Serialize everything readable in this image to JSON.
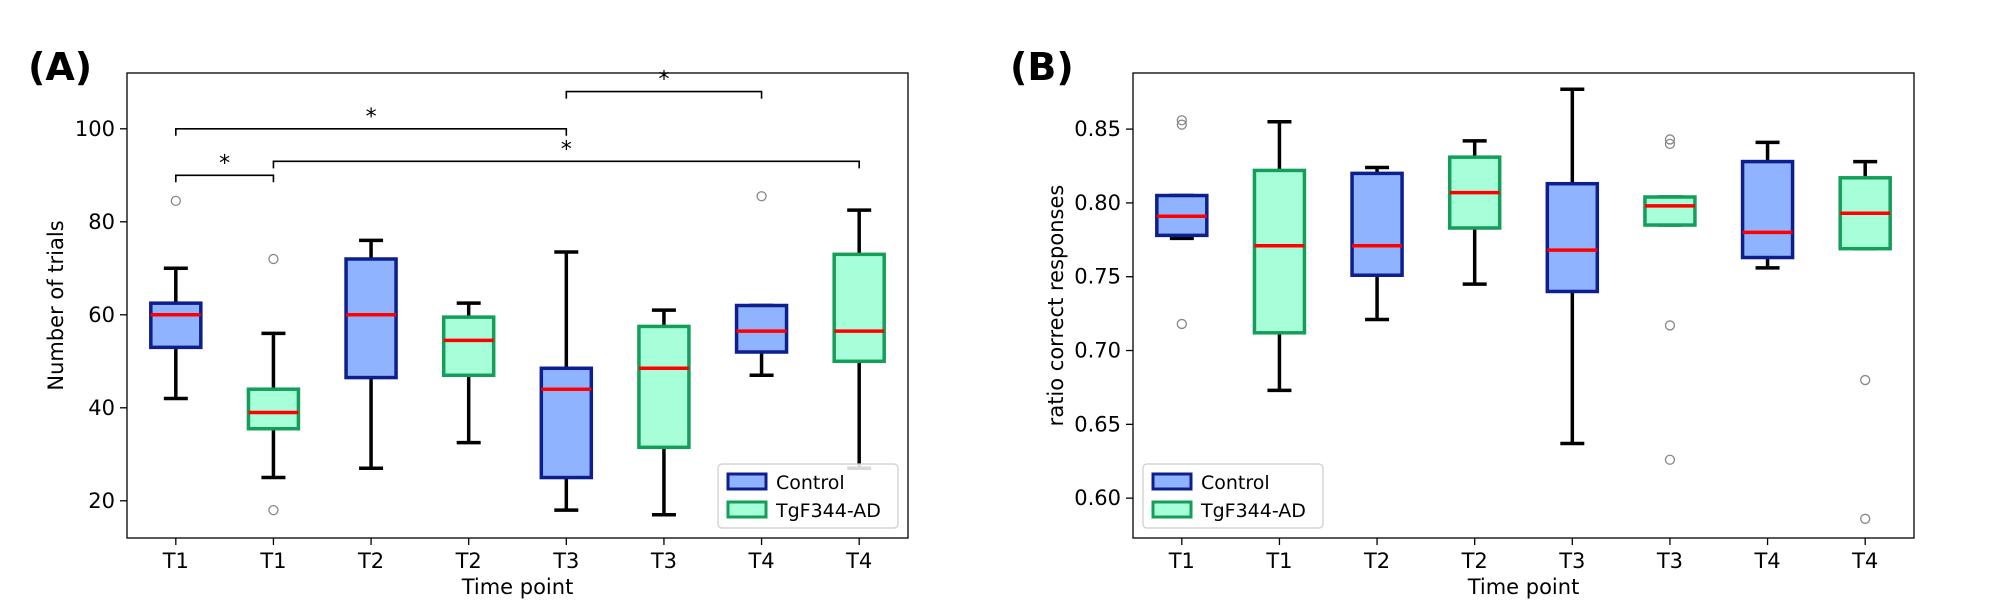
{
  "chart_data": [
    {
      "type": "boxplot",
      "panel_label": "(A)",
      "xlabel": "Time point",
      "ylabel": "Number of trials",
      "ylim": [
        12,
        112
      ],
      "yticks": [
        20,
        40,
        60,
        80,
        100
      ],
      "categories": [
        "T1",
        "T1",
        "T2",
        "T2",
        "T3",
        "T3",
        "T4",
        "T4"
      ],
      "boxes": [
        {
          "group": "Control",
          "whislo": 42,
          "q1": 53,
          "med": 60,
          "q3": 62.5,
          "whishi": 70,
          "fliers": [
            84.5
          ]
        },
        {
          "group": "TgF344-AD",
          "whislo": 25,
          "q1": 35.5,
          "med": 39,
          "q3": 44,
          "whishi": 56,
          "fliers": [
            72,
            18
          ]
        },
        {
          "group": "Control",
          "whislo": 27,
          "q1": 46.5,
          "med": 60,
          "q3": 72,
          "whishi": 76,
          "fliers": []
        },
        {
          "group": "TgF344-AD",
          "whislo": 32.5,
          "q1": 47,
          "med": 54.5,
          "q3": 59.5,
          "whishi": 62.5,
          "fliers": []
        },
        {
          "group": "Control",
          "whislo": 18,
          "q1": 25,
          "med": 44,
          "q3": 48.5,
          "whishi": 73.5,
          "fliers": []
        },
        {
          "group": "TgF344-AD",
          "whislo": 17,
          "q1": 31.5,
          "med": 48.5,
          "q3": 57.5,
          "whishi": 61,
          "fliers": []
        },
        {
          "group": "Control",
          "whislo": 47,
          "q1": 52,
          "med": 56.5,
          "q3": 62,
          "whishi": 62,
          "fliers": [
            85.5
          ]
        },
        {
          "group": "TgF344-AD",
          "whislo": 27,
          "q1": 50,
          "med": 56.5,
          "q3": 73,
          "whishi": 82.5,
          "fliers": []
        }
      ],
      "significance": [
        {
          "from": 0,
          "to": 1,
          "y": 90,
          "label": "*"
        },
        {
          "from": 0,
          "to": 4,
          "y": 100,
          "label": "*"
        },
        {
          "from": 4,
          "to": 6,
          "y": 108,
          "label": "*"
        },
        {
          "from": 1,
          "to": 7,
          "y": 93,
          "label": "*"
        }
      ],
      "legend": {
        "position": "lower right",
        "entries": [
          "Control",
          "TgF344-AD"
        ]
      }
    },
    {
      "type": "boxplot",
      "panel_label": "(B)",
      "xlabel": "Time point",
      "ylabel": "ratio correct responses",
      "ylim": [
        0.573,
        0.888
      ],
      "yticks": [
        0.6,
        0.65,
        0.7,
        0.75,
        0.8,
        0.85
      ],
      "ytick_labels": [
        "0.60",
        "0.65",
        "0.70",
        "0.75",
        "0.80",
        "0.85"
      ],
      "categories": [
        "T1",
        "T1",
        "T2",
        "T2",
        "T3",
        "T3",
        "T4",
        "T4"
      ],
      "boxes": [
        {
          "group": "Control",
          "whislo": 0.776,
          "q1": 0.778,
          "med": 0.791,
          "q3": 0.805,
          "whishi": 0.805,
          "fliers": [
            0.856,
            0.853,
            0.718
          ]
        },
        {
          "group": "TgF344-AD",
          "whislo": 0.673,
          "q1": 0.712,
          "med": 0.771,
          "q3": 0.822,
          "whishi": 0.855,
          "fliers": []
        },
        {
          "group": "Control",
          "whislo": 0.721,
          "q1": 0.751,
          "med": 0.771,
          "q3": 0.82,
          "whishi": 0.824,
          "fliers": []
        },
        {
          "group": "TgF344-AD",
          "whislo": 0.745,
          "q1": 0.783,
          "med": 0.807,
          "q3": 0.831,
          "whishi": 0.842,
          "fliers": []
        },
        {
          "group": "Control",
          "whislo": 0.637,
          "q1": 0.74,
          "med": 0.768,
          "q3": 0.813,
          "whishi": 0.877,
          "fliers": []
        },
        {
          "group": "TgF344-AD",
          "whislo": 0.785,
          "q1": 0.785,
          "med": 0.798,
          "q3": 0.804,
          "whishi": 0.804,
          "fliers": [
            0.843,
            0.84,
            0.717,
            0.626
          ]
        },
        {
          "group": "Control",
          "whislo": 0.756,
          "q1": 0.763,
          "med": 0.78,
          "q3": 0.828,
          "whishi": 0.841,
          "fliers": []
        },
        {
          "group": "TgF344-AD",
          "whislo": 0.769,
          "q1": 0.769,
          "med": 0.793,
          "q3": 0.817,
          "whishi": 0.828,
          "fliers": [
            0.68,
            0.586
          ]
        }
      ],
      "legend": {
        "position": "lower left",
        "entries": [
          "Control",
          "TgF344-AD"
        ]
      }
    }
  ],
  "colors": {
    "control_fill": "#8fb3ff",
    "control_edge": "#0d1f8c",
    "tg_fill": "#a6ffd9",
    "tg_edge": "#159e5a",
    "median": "#ff0000",
    "whisker": "#000000",
    "flier": "#888888"
  }
}
